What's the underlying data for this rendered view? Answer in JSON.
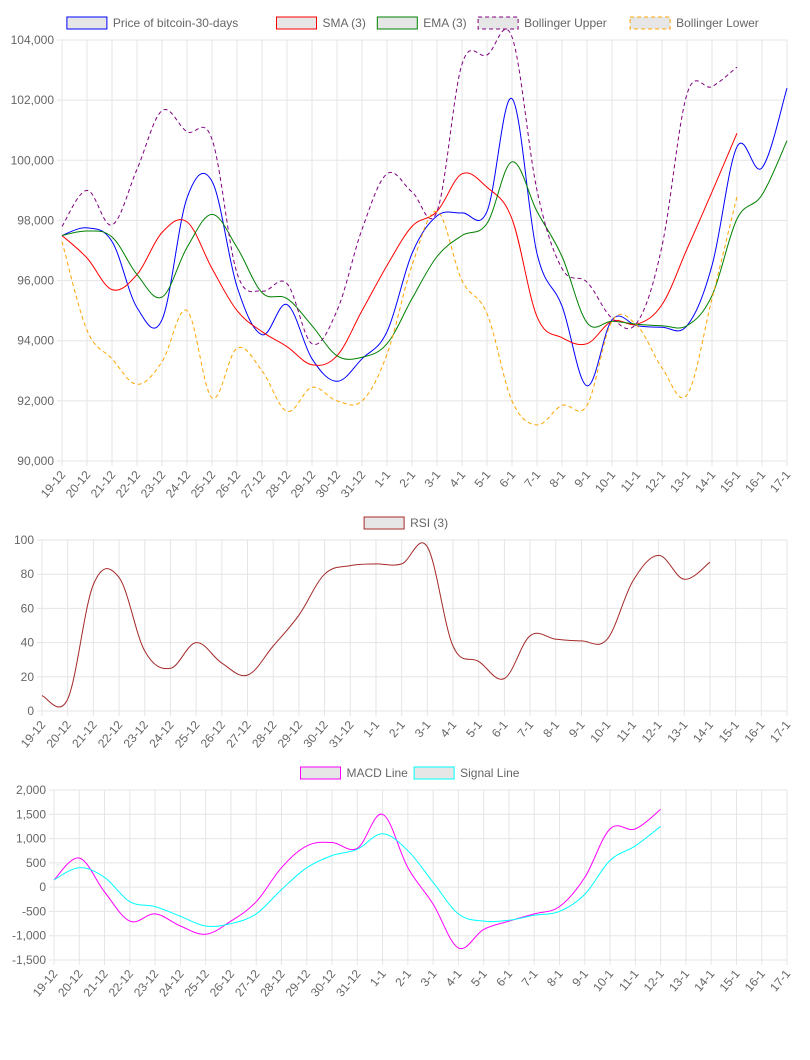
{
  "chart_data": [
    {
      "type": "line",
      "categories": [
        "19-12",
        "20-12",
        "21-12",
        "22-12",
        "23-12",
        "24-12",
        "25-12",
        "26-12",
        "27-12",
        "28-12",
        "29-12",
        "30-12",
        "31-12",
        "1-1",
        "2-1",
        "3-1",
        "4-1",
        "5-1",
        "6-1",
        "7-1",
        "8-1",
        "9-1",
        "10-1",
        "11-1",
        "12-1",
        "13-1",
        "14-1",
        "15-1",
        "16-1",
        "17-1"
      ],
      "ylim": [
        90000,
        104000
      ],
      "yticks": [
        90000,
        92000,
        94000,
        96000,
        98000,
        100000,
        102000,
        104000
      ],
      "ytick_labels": [
        "90,000",
        "92,000",
        "94,000",
        "96,000",
        "98,000",
        "100,000",
        "102,000",
        "104,000"
      ],
      "grid": true,
      "legend_position": "top",
      "series": [
        {
          "name": "Price of bitcoin-30-days",
          "color": "#0000ff",
          "dashed": false,
          "values": [
            97500,
            97750,
            97300,
            95100,
            94700,
            98750,
            99300,
            95800,
            94200,
            95200,
            93400,
            92650,
            93400,
            94300,
            96900,
            98150,
            98250,
            98300,
            102050,
            96900,
            95150,
            92500,
            94700,
            94500,
            94450,
            94500,
            96500,
            100450,
            99750,
            102400
          ]
        },
        {
          "name": "SMA (3)",
          "color": "#ff0000",
          "dashed": false,
          "values": [
            97500,
            96750,
            95700,
            96200,
            97600,
            97950,
            96400,
            95000,
            94300,
            93800,
            93200,
            93500,
            95000,
            96500,
            97800,
            98300,
            99550,
            99100,
            98050,
            94800,
            94100,
            93900,
            94650,
            94550,
            95200,
            97050,
            98950,
            100900,
            null,
            null
          ]
        },
        {
          "name": "EMA (3)",
          "color": "#008000",
          "dashed": false,
          "values": [
            97500,
            97650,
            97450,
            96200,
            95450,
            97100,
            98200,
            97100,
            95600,
            95400,
            94500,
            93500,
            93450,
            93900,
            95400,
            96800,
            97500,
            97900,
            99950,
            98300,
            96800,
            94600,
            94650,
            94550,
            94500,
            94500,
            95500,
            98050,
            98850,
            100650
          ]
        },
        {
          "name": "Bollinger Upper",
          "color": "#800080",
          "dashed": true,
          "values": [
            97800,
            99000,
            97850,
            99700,
            101650,
            100950,
            100700,
            96250,
            95650,
            95900,
            93900,
            95000,
            97700,
            99550,
            98950,
            98300,
            103200,
            103500,
            104100,
            99000,
            96400,
            95950,
            94750,
            94600,
            97150,
            102200,
            102450,
            103100,
            null,
            null
          ]
        },
        {
          "name": "Bollinger Lower",
          "color": "#ffa500",
          "dashed": true,
          "values": [
            97300,
            94350,
            93400,
            92550,
            93300,
            95000,
            92100,
            93750,
            93000,
            91650,
            92450,
            92000,
            92000,
            93550,
            96500,
            98300,
            96000,
            94900,
            92000,
            91200,
            91850,
            91850,
            94650,
            94500,
            93100,
            92200,
            95400,
            98800,
            null,
            null
          ]
        }
      ]
    },
    {
      "type": "line",
      "categories": [
        "19-12",
        "20-12",
        "21-12",
        "22-12",
        "23-12",
        "24-12",
        "25-12",
        "26-12",
        "27-12",
        "28-12",
        "29-12",
        "30-12",
        "31-12",
        "1-1",
        "2-1",
        "3-1",
        "4-1",
        "5-1",
        "6-1",
        "7-1",
        "8-1",
        "9-1",
        "10-1",
        "11-1",
        "12-1",
        "13-1",
        "14-1",
        "15-1",
        "16-1",
        "17-1"
      ],
      "ylim": [
        0,
        100
      ],
      "yticks": [
        0,
        20,
        40,
        60,
        80,
        100
      ],
      "ytick_labels": [
        "0",
        "20",
        "40",
        "60",
        "80",
        "100"
      ],
      "grid": true,
      "legend_position": "top",
      "series": [
        {
          "name": "RSI (3)",
          "color": "#a52a2a",
          "dashed": false,
          "values": [
            9,
            7,
            74,
            78,
            35,
            25,
            40,
            28,
            21,
            38,
            56,
            80,
            85,
            86,
            86,
            96,
            38,
            29,
            19,
            44,
            42,
            41,
            42,
            76,
            91,
            77,
            87,
            null,
            null,
            null
          ]
        }
      ]
    },
    {
      "type": "line",
      "categories": [
        "19-12",
        "20-12",
        "21-12",
        "22-12",
        "23-12",
        "24-12",
        "25-12",
        "26-12",
        "27-12",
        "28-12",
        "29-12",
        "30-12",
        "31-12",
        "1-1",
        "2-1",
        "3-1",
        "4-1",
        "5-1",
        "6-1",
        "7-1",
        "8-1",
        "9-1",
        "10-1",
        "11-1",
        "12-1",
        "13-1",
        "14-1",
        "15-1",
        "16-1",
        "17-1"
      ],
      "ylim": [
        -1500,
        2000
      ],
      "yticks": [
        -1500,
        -1000,
        -500,
        0,
        500,
        1000,
        1500,
        2000
      ],
      "ytick_labels": [
        "-1,500",
        "-1,000",
        "-500",
        "0",
        "500",
        "1,000",
        "1,500",
        "2,000"
      ],
      "grid": true,
      "legend_position": "top",
      "series": [
        {
          "name": "MACD Line",
          "color": "#ff00ff",
          "dashed": false,
          "values": [
            150,
            600,
            -100,
            -700,
            -550,
            -800,
            -970,
            -700,
            -300,
            400,
            850,
            920,
            800,
            1500,
            400,
            -350,
            -1250,
            -870,
            -700,
            -550,
            -400,
            200,
            1200,
            1200,
            1600,
            null,
            null,
            null,
            null,
            null
          ]
        },
        {
          "name": "Signal Line",
          "color": "#00ffff",
          "dashed": false,
          "values": [
            150,
            400,
            200,
            -300,
            -400,
            -600,
            -800,
            -750,
            -550,
            -50,
            400,
            650,
            780,
            1100,
            750,
            100,
            -550,
            -700,
            -680,
            -580,
            -500,
            -150,
            550,
            850,
            1250,
            null,
            null,
            null,
            null,
            null
          ]
        }
      ]
    }
  ]
}
